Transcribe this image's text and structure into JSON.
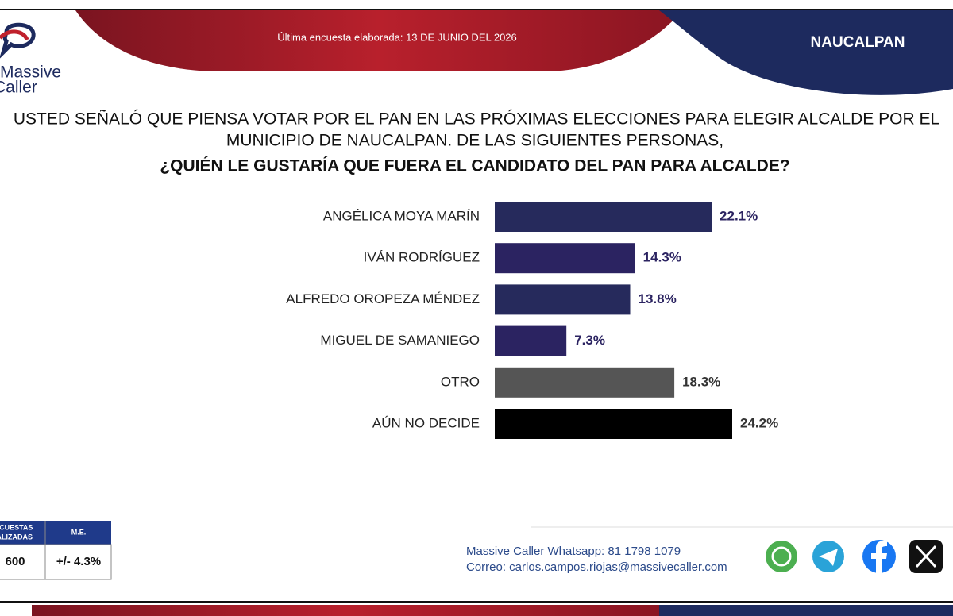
{
  "header": {
    "date_note": "Última encuesta elaborada: 13 DE JUNIO DEL 2026",
    "region": "NAUCALPAN",
    "logo": [
      "Massive",
      "Caller"
    ]
  },
  "chart_data": {
    "type": "bar",
    "orientation": "horizontal",
    "title_lines": [
      "USTED SEÑALÓ QUE PIENSA VOTAR POR EL PAN EN LAS PRÓXIMAS ELECCIONES PARA ELEGIR ALCALDE POR EL",
      "MUNICIPIO DE NAUCALPAN. DE LAS SIGUIENTES PERSONAS,",
      "¿QUIÉN LE GUSTARÍA QUE FUERA EL CANDIDATO DEL PAN PARA ALCALDE?"
    ],
    "categories": [
      "ANGÉLICA MOYA MARÍN",
      "IVÁN RODRÍGUEZ",
      "ALFREDO OROPEZA MÉNDEZ",
      "MIGUEL DE SAMANIEGO",
      "OTRO",
      "AÚN NO DECIDE"
    ],
    "values": [
      22.1,
      14.3,
      13.8,
      7.3,
      18.3,
      24.2
    ],
    "value_labels": [
      "22.1%",
      "14.3%",
      "13.8%",
      "7.3%",
      "18.3%",
      "24.2%"
    ],
    "colors": [
      "#262a5c",
      "#2b2361",
      "#262a5c",
      "#2b2361",
      "#555555",
      "#000000"
    ]
  },
  "sample_table": {
    "headers": [
      [
        "ENCUESTAS",
        "REALIZADAS"
      ],
      "M.E."
    ],
    "row": [
      600,
      "+/- 4.3%"
    ]
  },
  "contact": {
    "whatsapp": "Massive Caller Whatsapp: 81 1798 1079",
    "email": "Correo: carlos.campos.riojas@massivecaller.com"
  }
}
